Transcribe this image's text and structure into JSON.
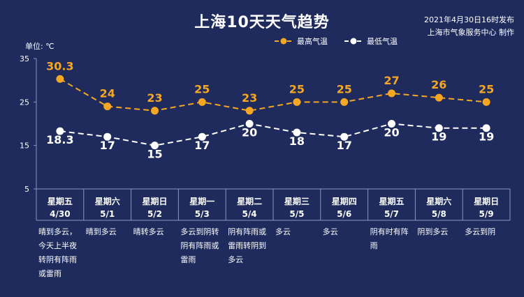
{
  "header": {
    "title": "上海10天天气趋势",
    "publish_time": "2021年4月30日16时发布",
    "publisher": "上海市气象服务中心 制作",
    "unit_label": "单位: ℃"
  },
  "colors": {
    "background": "#1e2b5c",
    "high": "#f5a623",
    "low": "#ffffff"
  },
  "chart_data": {
    "type": "line",
    "categories": [
      "星期五 4/30",
      "星期六 5/1",
      "星期日 5/2",
      "星期一 5/3",
      "星期二 5/4",
      "星期三 5/5",
      "星期四 5/6",
      "星期五 5/7",
      "星期六 5/8",
      "星期日 5/9"
    ],
    "weekdays": [
      "星期五",
      "星期六",
      "星期日",
      "星期一",
      "星期二",
      "星期三",
      "星期四",
      "星期五",
      "星期六",
      "星期日"
    ],
    "dates": [
      "4/30",
      "5/1",
      "5/2",
      "5/3",
      "5/4",
      "5/5",
      "5/6",
      "5/7",
      "5/8",
      "5/9"
    ],
    "series": [
      {
        "name": "最高气温",
        "values": [
          30.3,
          24,
          23,
          25,
          23,
          25,
          25,
          27,
          26,
          25
        ],
        "labels": [
          "30.3",
          "24",
          "23",
          "25",
          "23",
          "25",
          "25",
          "27",
          "26",
          "25"
        ]
      },
      {
        "name": "最低气温",
        "values": [
          18.3,
          17,
          15,
          17,
          20,
          18,
          17,
          20,
          19,
          19
        ],
        "labels": [
          "18.3",
          "17",
          "15",
          "17",
          "20",
          "18",
          "17",
          "20",
          "19",
          "19"
        ]
      }
    ],
    "yticks": [
      "35",
      "25",
      "15",
      "5"
    ],
    "ylim": [
      5,
      35
    ],
    "weather": [
      [
        "晴到多云，",
        "今天上半夜",
        "转阴有阵雨",
        "或雷雨"
      ],
      [
        "晴到多云"
      ],
      [
        "晴转多云"
      ],
      [
        "多云到阴转",
        "阴有阵雨或",
        "雷雨"
      ],
      [
        "阴有阵雨或",
        "雷雨转阴到",
        "多云"
      ],
      [
        "多云"
      ],
      [
        "多云"
      ],
      [
        "阴有时有阵",
        "雨"
      ],
      [
        "阴到多云"
      ],
      [
        "多云到阴"
      ]
    ]
  }
}
